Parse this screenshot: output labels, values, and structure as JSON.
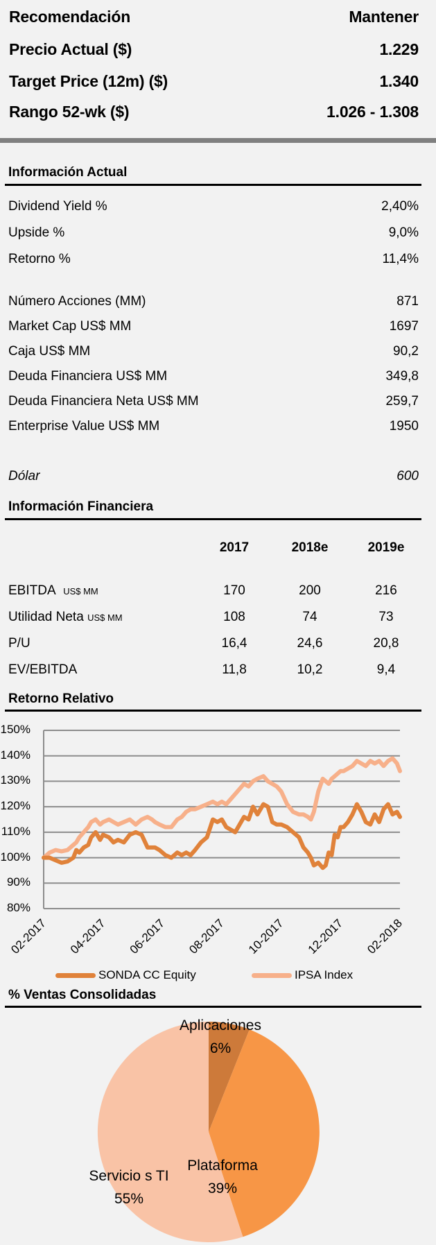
{
  "summary": {
    "rows": [
      {
        "label": "Recomendación",
        "value": "Mantener"
      },
      {
        "label": "Precio Actual  ($)",
        "value": "1.229"
      },
      {
        "label": "Target Price (12m)  ($)",
        "value": "1.340"
      },
      {
        "label": "Rango 52-wk ($)",
        "value": "1.026 - 1.308"
      }
    ]
  },
  "info_actual": {
    "title": "Información Actual",
    "rows": [
      {
        "label": "Dividend Yield %",
        "value": "2,40%"
      },
      {
        "label": "Upside %",
        "value": "9,0%"
      },
      {
        "label": "Retorno %",
        "value": "11,4%"
      },
      {
        "label": "Número Acciones (MM)",
        "value": "871"
      },
      {
        "label": "Market Cap US$ MM",
        "value": "1697"
      },
      {
        "label": "Caja  US$ MM",
        "value": "90,2"
      },
      {
        "label": "Deuda Financiera  US$ MM",
        "value": "349,8"
      },
      {
        "label": "Deuda Financiera Neta  US$ MM",
        "value": "259,7"
      },
      {
        "label": "Enterprise Value US$ MM",
        "value": "1950"
      }
    ],
    "dolar": {
      "label": "Dólar",
      "value": "600"
    }
  },
  "info_financiera": {
    "title": "Información Financiera",
    "columns": [
      "2017",
      "2018e",
      "2019e"
    ],
    "rows": [
      {
        "label": "EBITDA",
        "unit": "US$ MM",
        "values": [
          "170",
          "200",
          "216"
        ]
      },
      {
        "label": "Utilidad Neta",
        "unit": "US$ MM",
        "values": [
          "108",
          "74",
          "73"
        ]
      },
      {
        "label": "P/U",
        "unit": "",
        "values": [
          "16,4",
          "24,6",
          "20,8"
        ]
      },
      {
        "label": "EV/EBITDA",
        "unit": "",
        "values": [
          "11,8",
          "10,2",
          "9,4"
        ]
      }
    ]
  },
  "retorno_relativo": {
    "title": "Retorno Relativo"
  },
  "ventas": {
    "title": "% Ventas Consolidadas"
  },
  "chart_data": [
    {
      "type": "line",
      "title": "Retorno Relativo",
      "xlabel": "",
      "ylabel": "",
      "ylim": [
        0.8,
        1.5
      ],
      "yticks": [
        "150%",
        "140%",
        "130%",
        "120%",
        "110%",
        "100%",
        "90%",
        "80%"
      ],
      "ytick_values": [
        1.5,
        1.4,
        1.3,
        1.2,
        1.1,
        1.0,
        0.9,
        0.8
      ],
      "xticks": [
        "02-2017",
        "04-2017",
        "06-2017",
        "08-2017",
        "10-2017",
        "12-2017",
        "02-2018"
      ],
      "xlim": [
        0,
        12
      ],
      "grid": true,
      "legend": "bottom",
      "series": [
        {
          "name": "SONDA CC Equity",
          "color": "#E0823A",
          "x": [
            0,
            0.2,
            0.4,
            0.6,
            0.8,
            1.0,
            1.1,
            1.2,
            1.35,
            1.5,
            1.6,
            1.75,
            1.9,
            2.0,
            2.2,
            2.35,
            2.5,
            2.7,
            2.9,
            3.1,
            3.3,
            3.5,
            3.65,
            3.75,
            3.9,
            4.1,
            4.3,
            4.5,
            4.65,
            4.8,
            4.95,
            5.1,
            5.3,
            5.5,
            5.7,
            5.85,
            6.0,
            6.15,
            6.3,
            6.45,
            6.6,
            6.75,
            6.9,
            7.05,
            7.2,
            7.4,
            7.55,
            7.7,
            7.85,
            8.0,
            8.2,
            8.4,
            8.6,
            8.75,
            8.9,
            9.0,
            9.1,
            9.25,
            9.4,
            9.5,
            9.6,
            9.7,
            9.8,
            9.9,
            10.0,
            10.1,
            10.25,
            10.4,
            10.55,
            10.7,
            10.85,
            11.0,
            11.15,
            11.3,
            11.45,
            11.6,
            11.75,
            11.9,
            12.0
          ],
          "y": [
            1.0,
            1.0,
            0.99,
            0.98,
            0.985,
            1.0,
            1.03,
            1.02,
            1.04,
            1.05,
            1.08,
            1.1,
            1.07,
            1.09,
            1.08,
            1.06,
            1.07,
            1.06,
            1.09,
            1.1,
            1.09,
            1.04,
            1.04,
            1.04,
            1.03,
            1.01,
            1.0,
            1.02,
            1.01,
            1.02,
            1.01,
            1.03,
            1.06,
            1.08,
            1.15,
            1.14,
            1.15,
            1.12,
            1.11,
            1.1,
            1.13,
            1.16,
            1.15,
            1.2,
            1.17,
            1.21,
            1.2,
            1.14,
            1.13,
            1.13,
            1.12,
            1.1,
            1.08,
            1.04,
            1.02,
            1.0,
            0.97,
            0.98,
            0.96,
            0.97,
            1.02,
            1.01,
            1.09,
            1.08,
            1.12,
            1.12,
            1.14,
            1.17,
            1.21,
            1.18,
            1.14,
            1.13,
            1.17,
            1.14,
            1.19,
            1.21,
            1.17,
            1.18,
            1.16
          ]
        },
        {
          "name": "IPSA Index",
          "color": "#F7B08A",
          "x": [
            0,
            0.2,
            0.4,
            0.6,
            0.8,
            1.0,
            1.1,
            1.2,
            1.35,
            1.5,
            1.6,
            1.75,
            1.9,
            2.0,
            2.2,
            2.35,
            2.5,
            2.7,
            2.9,
            3.1,
            3.3,
            3.5,
            3.65,
            3.75,
            3.9,
            4.1,
            4.3,
            4.5,
            4.65,
            4.8,
            4.95,
            5.1,
            5.3,
            5.5,
            5.7,
            5.85,
            6.0,
            6.15,
            6.3,
            6.45,
            6.6,
            6.75,
            6.9,
            7.05,
            7.2,
            7.4,
            7.55,
            7.7,
            7.85,
            8.0,
            8.2,
            8.4,
            8.6,
            8.75,
            8.9,
            9.0,
            9.1,
            9.25,
            9.4,
            9.5,
            9.6,
            9.7,
            9.8,
            9.9,
            10.0,
            10.1,
            10.25,
            10.4,
            10.55,
            10.7,
            10.85,
            11.0,
            11.15,
            11.3,
            11.45,
            11.6,
            11.75,
            11.9,
            12.0
          ],
          "y": [
            1.0,
            1.02,
            1.03,
            1.025,
            1.03,
            1.05,
            1.06,
            1.08,
            1.1,
            1.12,
            1.14,
            1.15,
            1.13,
            1.14,
            1.15,
            1.14,
            1.13,
            1.14,
            1.15,
            1.13,
            1.15,
            1.16,
            1.15,
            1.14,
            1.13,
            1.12,
            1.12,
            1.15,
            1.16,
            1.18,
            1.19,
            1.19,
            1.2,
            1.21,
            1.22,
            1.21,
            1.22,
            1.21,
            1.23,
            1.25,
            1.27,
            1.29,
            1.28,
            1.3,
            1.31,
            1.32,
            1.3,
            1.29,
            1.28,
            1.26,
            1.21,
            1.18,
            1.17,
            1.17,
            1.16,
            1.15,
            1.18,
            1.26,
            1.31,
            1.3,
            1.29,
            1.31,
            1.32,
            1.33,
            1.34,
            1.34,
            1.35,
            1.36,
            1.38,
            1.37,
            1.36,
            1.38,
            1.37,
            1.38,
            1.36,
            1.38,
            1.39,
            1.37,
            1.34
          ]
        }
      ]
    },
    {
      "type": "pie",
      "title": "% Ventas Consolidadas",
      "slices": [
        {
          "label": "Aplicaciones",
          "value": 6,
          "display": "6%",
          "color": "#CD7A3A"
        },
        {
          "label": "Plataforma",
          "value": 39,
          "display": "39%",
          "color": "#F79646"
        },
        {
          "label": "Servicio s TI",
          "value": 55,
          "display": "55%",
          "color": "#F9C3A6"
        }
      ]
    }
  ]
}
